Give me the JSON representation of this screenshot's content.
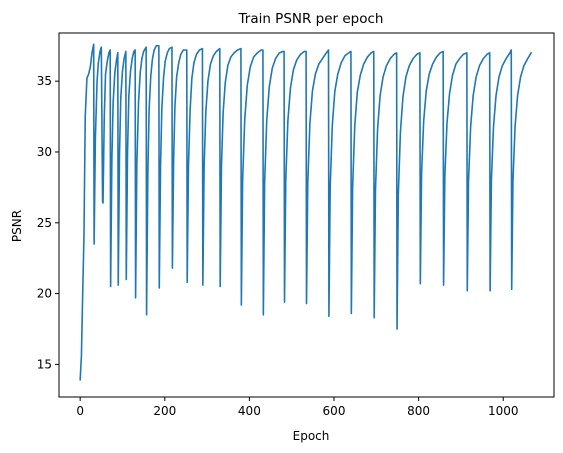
{
  "chart_data": {
    "type": "line",
    "title": "Train PSNR per epoch",
    "xlabel": "Epoch",
    "ylabel": "PSNR",
    "xlim": [
      -50,
      1120
    ],
    "ylim": [
      12.7,
      38.4
    ],
    "xticks": [
      0,
      200,
      400,
      600,
      800,
      1000
    ],
    "yticks": [
      15,
      20,
      25,
      30,
      35
    ],
    "grid": false,
    "legend": "none",
    "color": "#1f77b4",
    "series": [
      {
        "x": [
          0,
          3,
          6,
          9,
          12,
          16,
          20,
          24,
          28,
          32,
          33,
          36,
          40,
          43,
          47,
          50,
          53,
          54,
          57,
          60,
          64,
          68,
          71,
          72,
          75,
          78,
          82,
          86,
          89,
          90,
          93,
          96,
          100,
          104,
          108,
          109,
          112,
          115,
          119,
          123,
          127,
          130,
          131,
          134,
          138,
          142,
          146,
          150,
          156,
          157,
          160,
          163,
          167,
          171,
          175,
          180,
          186,
          187,
          190,
          193,
          197,
          201,
          206,
          211,
          217,
          218,
          221,
          224,
          228,
          233,
          238,
          244,
          252,
          253,
          256,
          260,
          264,
          269,
          275,
          282,
          289,
          290,
          293,
          297,
          302,
          308,
          315,
          322,
          330,
          331,
          334,
          338,
          343,
          349,
          356,
          364,
          372,
          380,
          381,
          384,
          389,
          395,
          402,
          410,
          419,
          428,
          432,
          433,
          436,
          441,
          447,
          454,
          462,
          471,
          480,
          482,
          483,
          486,
          491,
          497,
          504,
          512,
          521,
          530,
          534,
          535,
          538,
          543,
          549,
          556,
          564,
          573,
          582,
          587,
          588,
          591,
          596,
          602,
          609,
          617,
          626,
          635,
          640,
          641,
          644,
          649,
          655,
          662,
          670,
          679,
          688,
          694,
          695,
          698,
          703,
          709,
          716,
          724,
          733,
          742,
          748,
          749,
          752,
          757,
          763,
          770,
          778,
          787,
          796,
          803,
          804,
          807,
          812,
          818,
          825,
          833,
          842,
          851,
          858,
          859,
          862,
          867,
          873,
          880,
          888,
          897,
          906,
          914,
          915,
          918,
          923,
          929,
          936,
          944,
          953,
          962,
          968,
          969,
          972,
          977,
          983,
          990,
          998,
          1007,
          1016,
          1019,
          1020,
          1023,
          1028,
          1034,
          1041,
          1049,
          1058,
          1066
        ],
        "y": [
          13.9,
          15.6,
          20.0,
          24.0,
          32.5,
          35.2,
          35.5,
          36.0,
          37.0,
          37.6,
          23.5,
          31.0,
          35.0,
          36.3,
          37.1,
          37.4,
          26.5,
          26.4,
          32.5,
          35.5,
          36.4,
          37.0,
          37.2,
          20.5,
          29.5,
          33.5,
          35.6,
          36.5,
          37.0,
          20.6,
          29.8,
          33.8,
          35.7,
          36.6,
          37.1,
          21.0,
          30.0,
          33.9,
          35.7,
          36.6,
          37.1,
          37.2,
          19.7,
          29.2,
          33.5,
          35.6,
          36.6,
          37.1,
          37.4,
          18.5,
          28.5,
          33.0,
          35.4,
          36.6,
          37.2,
          37.5,
          37.5,
          20.4,
          29.0,
          33.0,
          35.2,
          36.4,
          37.0,
          37.3,
          37.4,
          21.8,
          29.5,
          33.2,
          35.3,
          36.3,
          36.9,
          37.2,
          37.2,
          20.8,
          29.0,
          33.0,
          35.2,
          36.3,
          36.9,
          37.2,
          37.3,
          20.6,
          29.0,
          32.8,
          35.0,
          36.2,
          36.8,
          37.1,
          37.3,
          20.5,
          29.0,
          32.8,
          34.9,
          36.1,
          36.7,
          37.0,
          37.2,
          37.3,
          19.2,
          28.0,
          32.3,
          34.7,
          36.0,
          36.7,
          37.0,
          37.2,
          37.2,
          18.5,
          27.8,
          32.2,
          34.6,
          35.9,
          36.6,
          37.0,
          37.1,
          37.1,
          19.4,
          28.0,
          32.2,
          34.5,
          35.8,
          36.5,
          36.9,
          37.1,
          37.1,
          19.3,
          27.8,
          32.0,
          34.3,
          35.5,
          36.2,
          36.6,
          37.0,
          37.2,
          18.4,
          27.5,
          31.9,
          34.3,
          35.5,
          36.3,
          36.8,
          37.0,
          37.1,
          18.6,
          27.5,
          31.8,
          34.2,
          35.4,
          36.2,
          36.7,
          37.0,
          37.1,
          18.3,
          27.3,
          31.6,
          34.0,
          35.3,
          36.1,
          36.6,
          36.9,
          37.0,
          17.5,
          27.0,
          31.4,
          33.9,
          35.3,
          36.1,
          36.6,
          36.9,
          37.0,
          20.7,
          28.5,
          32.2,
          34.3,
          35.5,
          36.2,
          36.7,
          37.0,
          37.1,
          20.6,
          28.3,
          32.0,
          34.1,
          35.4,
          36.2,
          36.6,
          36.9,
          37.0,
          20.2,
          28.0,
          31.8,
          34.0,
          35.3,
          36.1,
          36.6,
          36.9,
          37.0,
          20.2,
          28.0,
          31.8,
          34.0,
          35.3,
          36.1,
          36.6,
          37.0,
          37.2,
          20.3,
          28.0,
          31.8,
          34.0,
          35.3,
          36.1,
          36.6,
          37.0
        ]
      }
    ]
  }
}
